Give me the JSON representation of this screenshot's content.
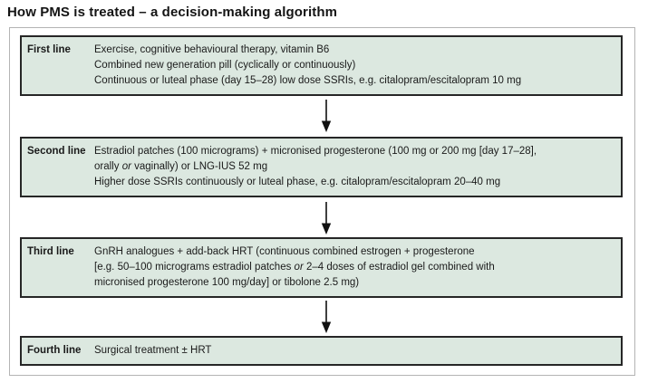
{
  "page": {
    "title": "How PMS is treated – a decision-making algorithm"
  },
  "theme": {
    "box_fill": "#dce8e0",
    "box_border": "#262626",
    "frame_border": "#b4b4b4",
    "arrow_color": "#111111",
    "text_color": "#1a1a1a"
  },
  "algorithm": {
    "boxes": [
      {
        "label": "First line",
        "lines": [
          [
            {
              "t": "Exercise, cognitive behavioural therapy, vitamin B6"
            }
          ],
          [
            {
              "t": "Combined new generation pill (cyclically or continuously)"
            }
          ],
          [
            {
              "t": "Continuous or luteal phase (day 15–28) low dose SSRIs, e.g. citalopram/escitalopram 10 mg"
            }
          ]
        ]
      },
      {
        "label": "Second line",
        "lines": [
          [
            {
              "t": "Estradiol patches (100 micrograms) + micronised progesterone (100 mg or 200 mg [day 17–28],"
            }
          ],
          [
            {
              "t": "orally "
            },
            {
              "t": "or",
              "italic": true
            },
            {
              "t": " vaginally) or LNG-IUS 52 mg"
            }
          ],
          [
            {
              "t": "Higher dose SSRIs continuously or luteal phase, e.g. citalopram/escitalopram 20–40 mg"
            }
          ]
        ]
      },
      {
        "label": "Third line",
        "lines": [
          [
            {
              "t": "GnRH analogues + add-back HRT (continuous combined estrogen + progesterone"
            }
          ],
          [
            {
              "t": "[e.g. 50–100 micrograms estradiol patches "
            },
            {
              "t": "or",
              "italic": true
            },
            {
              "t": " 2–4 doses of estradiol gel combined with"
            }
          ],
          [
            {
              "t": "micronised progesterone 100 mg/day] or tibolone 2.5 mg)"
            }
          ]
        ]
      },
      {
        "label": "Fourth line",
        "lines": [
          [
            {
              "t": "Surgical treatment ± HRT"
            }
          ]
        ]
      }
    ]
  }
}
